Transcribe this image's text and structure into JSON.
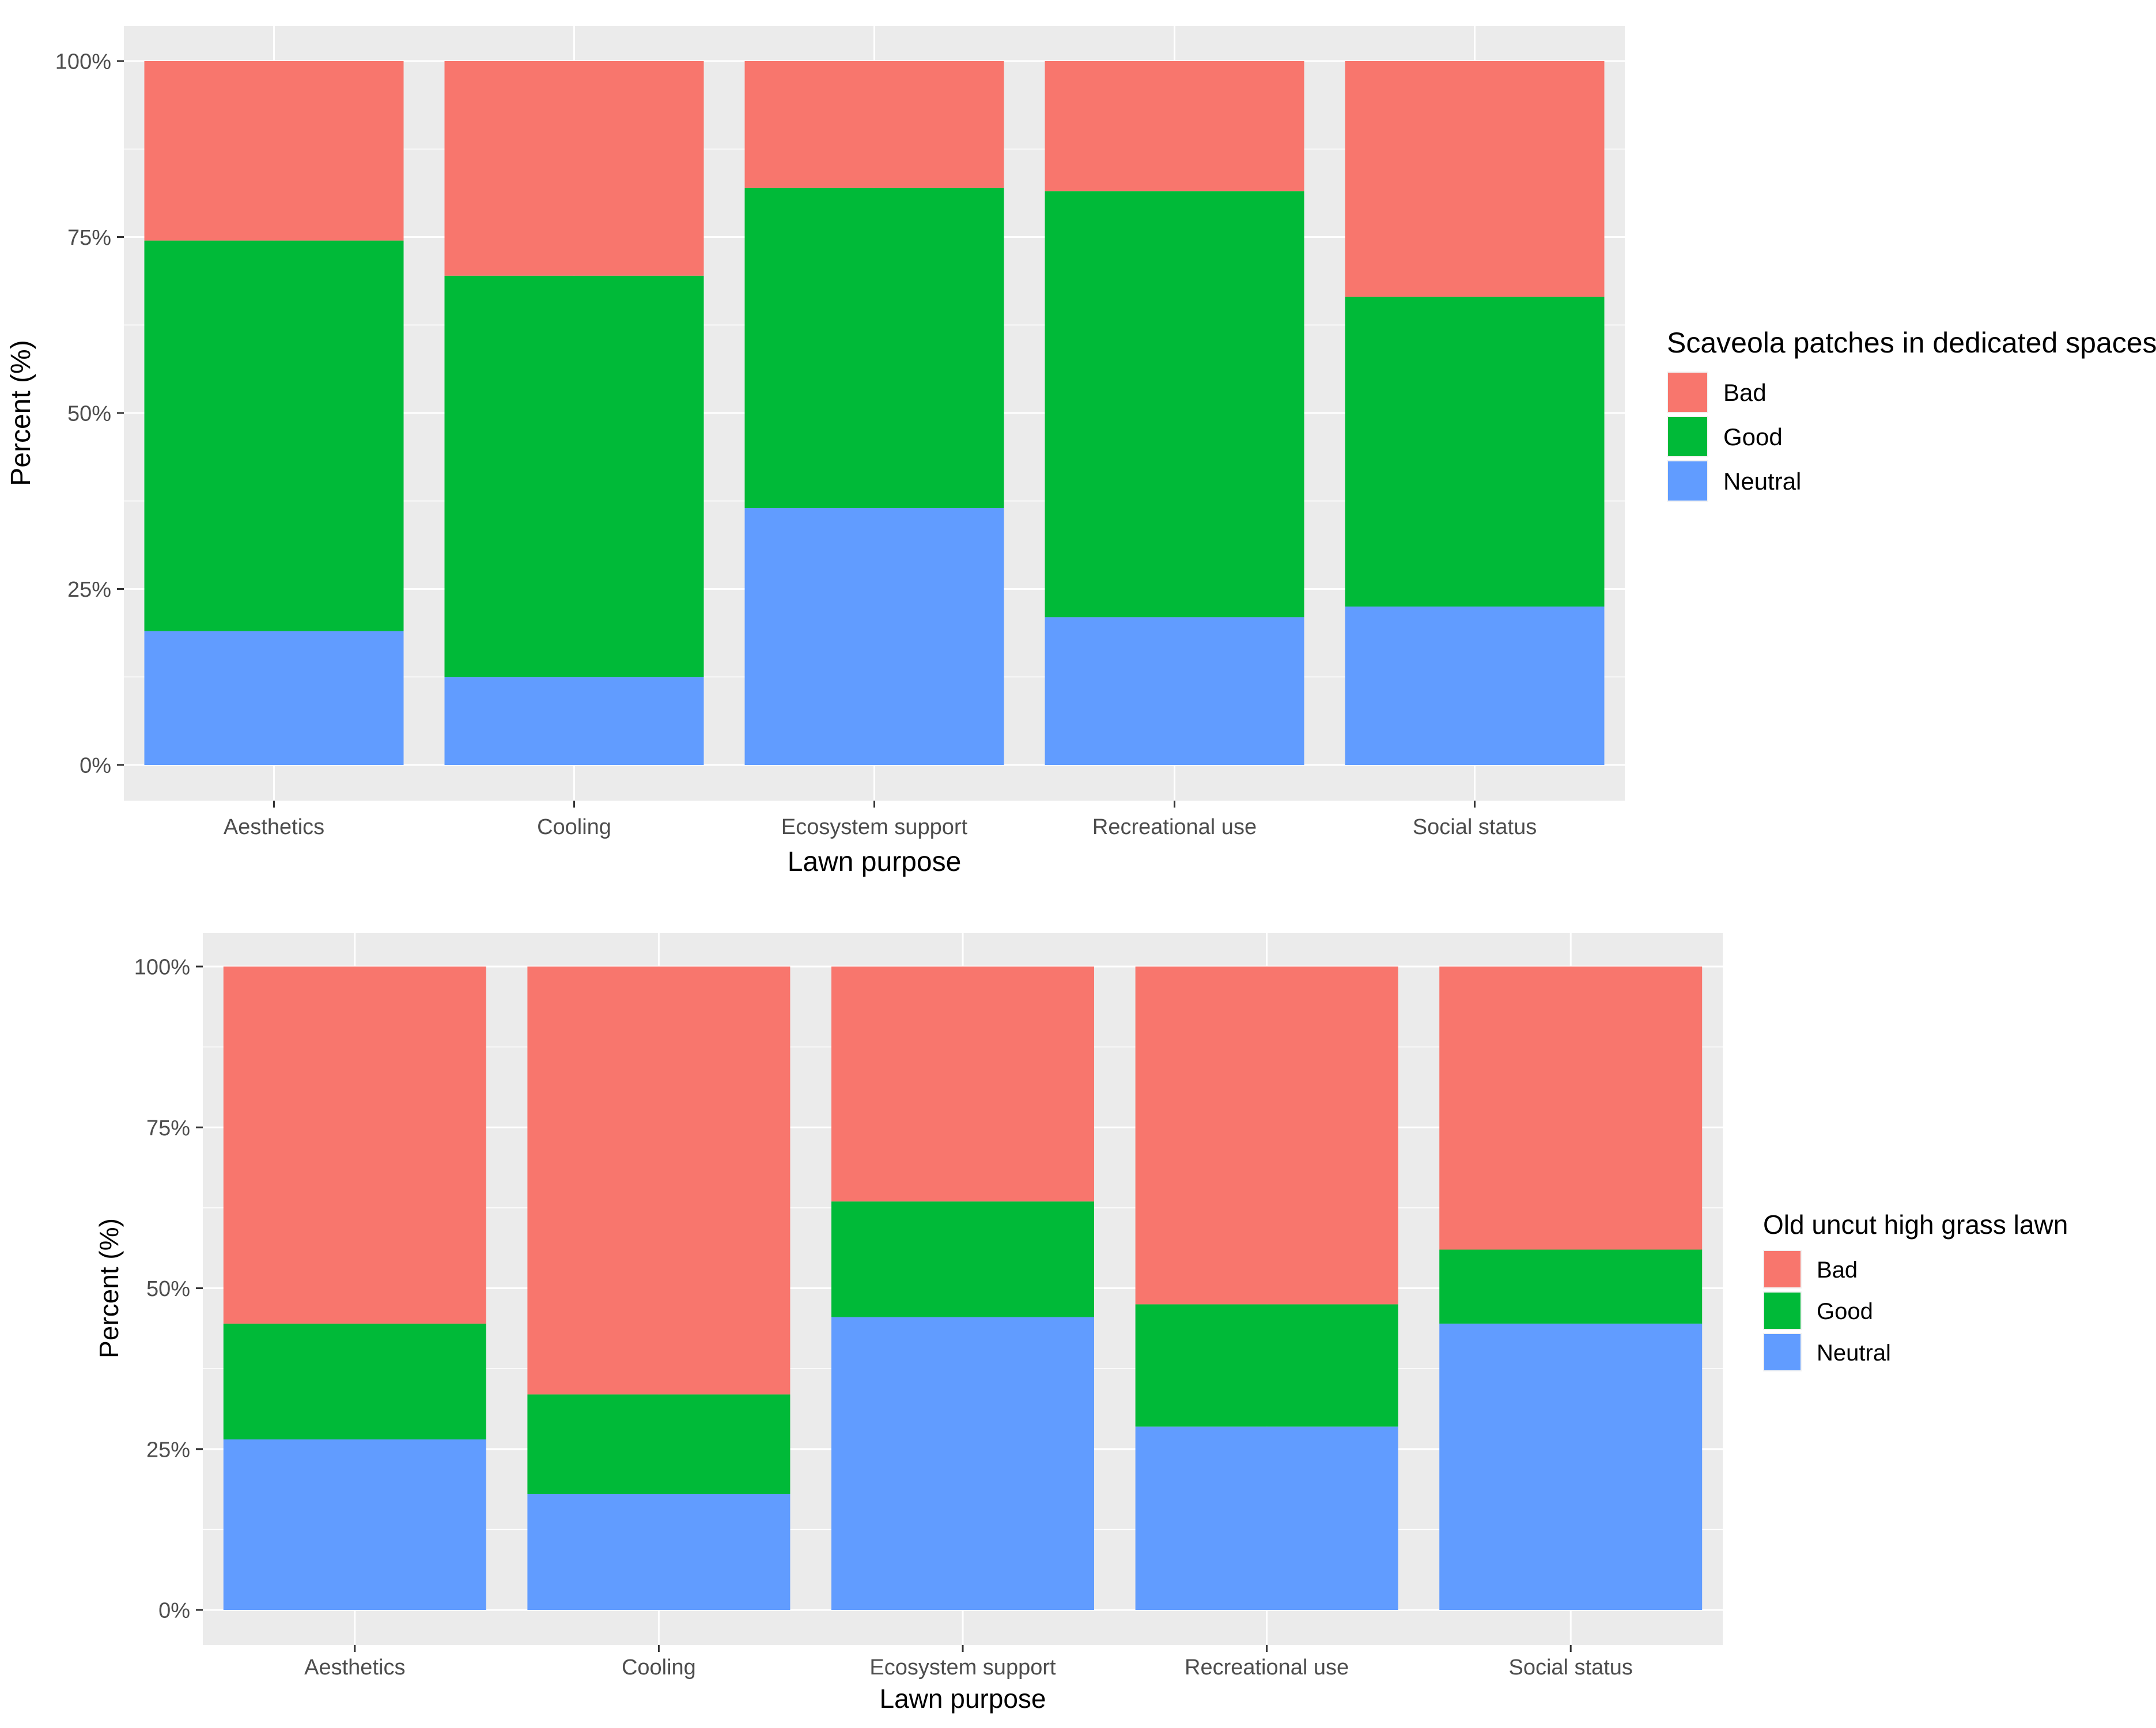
{
  "chart_data": [
    {
      "type": "bar",
      "stacked": true,
      "title": "",
      "xlabel": "Lawn purpose",
      "ylabel": "Percent (%)",
      "ylim": [
        0,
        100
      ],
      "yticks": [
        "0%",
        "25%",
        "50%",
        "75%",
        "100%"
      ],
      "categories": [
        "Aesthetics",
        "Cooling",
        "Ecosystem support",
        "Recreational use",
        "Social status"
      ],
      "legend_title": "Scaveola patches in dedicated spaces",
      "legend_position": "right",
      "series": [
        {
          "name": "Neutral",
          "color": "#619CFF",
          "values": [
            19,
            12.5,
            36.5,
            21,
            22.5
          ]
        },
        {
          "name": "Good",
          "color": "#00BA38",
          "values": [
            55.5,
            57,
            45.5,
            60.5,
            44
          ]
        },
        {
          "name": "Bad",
          "color": "#F8766D",
          "values": [
            25.5,
            30.5,
            18,
            18.5,
            33.5
          ]
        }
      ],
      "legend_order": [
        "Bad",
        "Good",
        "Neutral"
      ]
    },
    {
      "type": "bar",
      "stacked": true,
      "title": "",
      "xlabel": "Lawn purpose",
      "ylabel": "Percent (%)",
      "ylim": [
        0,
        100
      ],
      "yticks": [
        "0%",
        "25%",
        "50%",
        "75%",
        "100%"
      ],
      "categories": [
        "Aesthetics",
        "Cooling",
        "Ecosystem support",
        "Recreational use",
        "Social status"
      ],
      "legend_title": "Old uncut high grass lawn",
      "legend_position": "right",
      "series": [
        {
          "name": "Neutral",
          "color": "#619CFF",
          "values": [
            26.5,
            18,
            45.5,
            28.5,
            44.5
          ]
        },
        {
          "name": "Good",
          "color": "#00BA38",
          "values": [
            18,
            15.5,
            18,
            19,
            11.5
          ]
        },
        {
          "name": "Bad",
          "color": "#F8766D",
          "values": [
            55.5,
            66.5,
            36.5,
            52.5,
            44
          ]
        }
      ],
      "legend_order": [
        "Bad",
        "Good",
        "Neutral"
      ]
    }
  ]
}
